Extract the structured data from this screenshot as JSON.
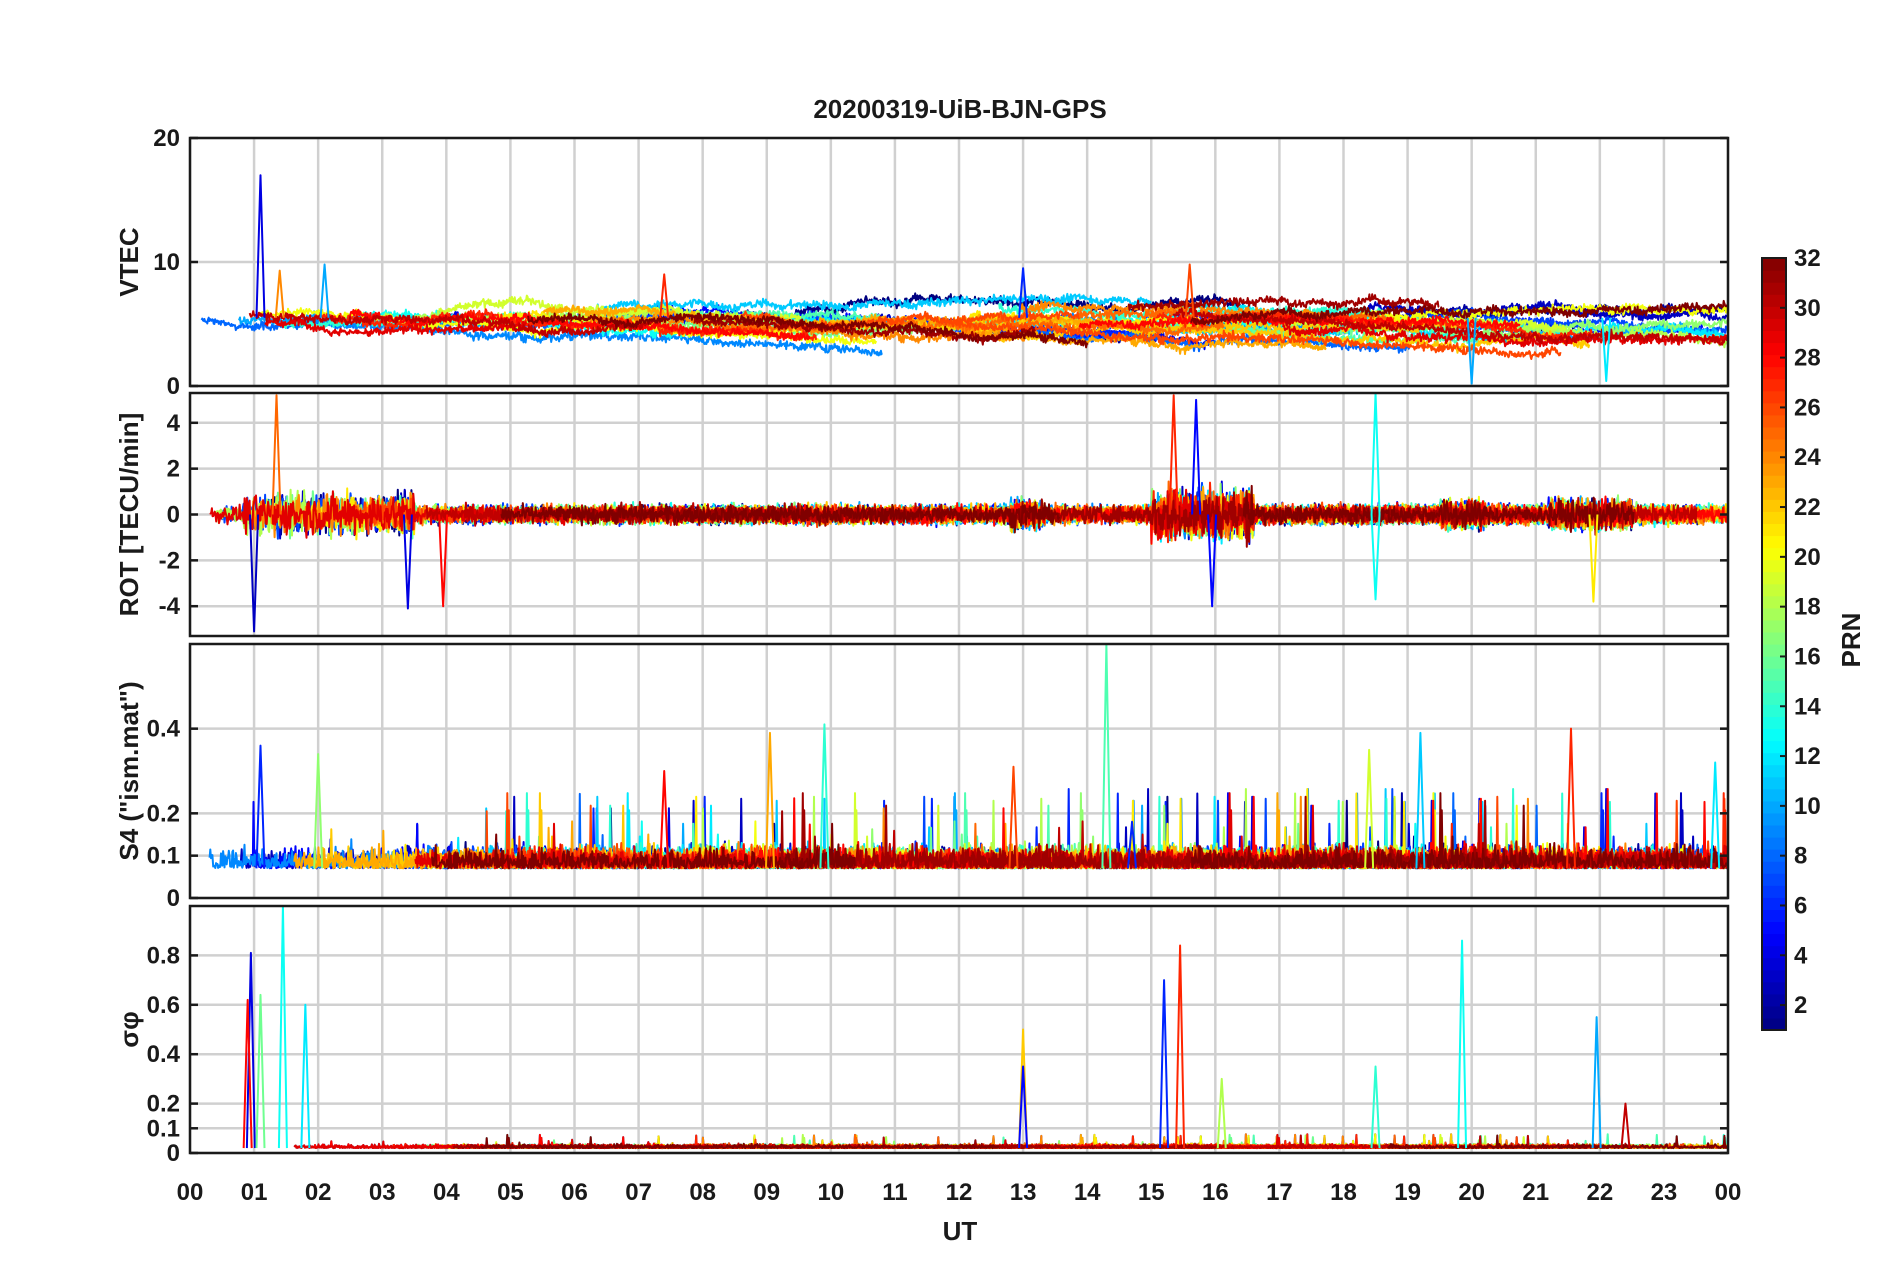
{
  "chart_data": {
    "type": "line",
    "title": "20200319-UiB-BJN-GPS",
    "xlabel": "UT",
    "x_tick_labels": [
      "00",
      "01",
      "02",
      "03",
      "04",
      "05",
      "06",
      "07",
      "08",
      "09",
      "10",
      "11",
      "12",
      "13",
      "14",
      "15",
      "16",
      "17",
      "18",
      "19",
      "20",
      "21",
      "22",
      "23",
      "00"
    ],
    "xlim": [
      0,
      24
    ],
    "colorbar": {
      "label": "PRN",
      "range": [
        1,
        32
      ],
      "tick_labels": [
        "2",
        "4",
        "6",
        "8",
        "10",
        "12",
        "14",
        "16",
        "18",
        "20",
        "22",
        "24",
        "26",
        "28",
        "30",
        "32"
      ],
      "colormap": "jet"
    },
    "panels": [
      {
        "id": "vtec",
        "ylabel": "VTEC",
        "ylim": [
          0,
          20
        ],
        "yticks": [
          0,
          10,
          20
        ],
        "ytick_labels": [
          "0",
          "10",
          "20"
        ],
        "baseline": 5.5,
        "noise": 1.2,
        "drift": 1.0,
        "clip_low": 0.3,
        "spikes": [
          {
            "prn": 4,
            "t": 1.1,
            "v": 17
          },
          {
            "prn": 10,
            "t": 2.1,
            "v": 9.8
          },
          {
            "prn": 24,
            "t": 1.4,
            "v": 9.3
          },
          {
            "prn": 6,
            "t": 13.0,
            "v": 9.5
          },
          {
            "prn": 26,
            "t": 15.6,
            "v": 9.8
          },
          {
            "prn": 27,
            "t": 7.4,
            "v": 9.0
          },
          {
            "prn": 10,
            "t": 20.0,
            "v": 0.2
          },
          {
            "prn": 12,
            "t": 22.1,
            "v": 0.4
          }
        ]
      },
      {
        "id": "rot",
        "ylabel": "ROT [TECU/min]",
        "ylim": [
          -5.3,
          5.3
        ],
        "yticks": [
          -4,
          -2,
          0,
          2,
          4
        ],
        "ytick_labels": [
          "-4",
          "-2",
          "0",
          "2",
          "4"
        ],
        "baseline": 0,
        "noise": 0.35,
        "active_windows": [
          [
            0.8,
            3.5,
            2.2
          ],
          [
            12.8,
            13.3,
            1.6
          ],
          [
            15.0,
            16.6,
            2.8
          ],
          [
            19.5,
            20.2,
            1.5
          ],
          [
            21.2,
            22.5,
            1.6
          ]
        ],
        "spikes": [
          {
            "prn": 3,
            "t": 1.0,
            "v": -5.1
          },
          {
            "prn": 25,
            "t": 1.35,
            "v": 5.2
          },
          {
            "prn": 4,
            "t": 3.4,
            "v": -4.1
          },
          {
            "prn": 28,
            "t": 3.95,
            "v": -4.0
          },
          {
            "prn": 27,
            "t": 15.35,
            "v": 5.2
          },
          {
            "prn": 5,
            "t": 15.7,
            "v": 5.0
          },
          {
            "prn": 5,
            "t": 15.95,
            "v": -4.0
          },
          {
            "prn": 13,
            "t": 18.5,
            "v": 5.3
          },
          {
            "prn": 13,
            "t": 18.5,
            "v": -3.7
          },
          {
            "prn": 21,
            "t": 21.9,
            "v": -3.8
          }
        ]
      },
      {
        "id": "s4",
        "ylabel": "S4 (\"ism.mat\")",
        "ylim": [
          0,
          0.6
        ],
        "yticks": [
          0,
          0.1,
          0.2,
          0.4
        ],
        "ytick_labels": [
          "0",
          "0.1",
          "0.2",
          "0.4"
        ],
        "baseline": 0.07,
        "noise": 0.04,
        "clip_low": 0.02,
        "spikes": [
          {
            "prn": 6,
            "t": 1.1,
            "v": 0.36
          },
          {
            "prn": 17,
            "t": 2.0,
            "v": 0.34
          },
          {
            "prn": 28,
            "t": 7.4,
            "v": 0.3
          },
          {
            "prn": 23,
            "t": 9.05,
            "v": 0.39
          },
          {
            "prn": 14,
            "t": 9.9,
            "v": 0.41
          },
          {
            "prn": 26,
            "t": 12.85,
            "v": 0.31
          },
          {
            "prn": 15,
            "t": 14.3,
            "v": 0.6
          },
          {
            "prn": 6,
            "t": 14.7,
            "v": 0.18
          },
          {
            "prn": 19,
            "t": 18.4,
            "v": 0.35
          },
          {
            "prn": 11,
            "t": 19.2,
            "v": 0.39
          },
          {
            "prn": 27,
            "t": 21.55,
            "v": 0.4
          },
          {
            "prn": 12,
            "t": 23.8,
            "v": 0.32
          }
        ]
      },
      {
        "id": "sigma_phi",
        "ylabel": "σφ",
        "ylim": [
          0,
          1.0
        ],
        "yticks": [
          0,
          0.1,
          0.2,
          0.4,
          0.6,
          0.8
        ],
        "ytick_labels": [
          "0",
          "0.1",
          "0.2",
          "0.4",
          "0.6",
          "0.8"
        ],
        "baseline": 0.02,
        "noise": 0.012,
        "clip_low": 0.0,
        "spikes": [
          {
            "prn": 4,
            "t": 0.95,
            "v": 0.81
          },
          {
            "prn": 28,
            "t": 0.9,
            "v": 0.62
          },
          {
            "prn": 16,
            "t": 1.1,
            "v": 0.64
          },
          {
            "prn": 13,
            "t": 1.45,
            "v": 1.0
          },
          {
            "prn": 12,
            "t": 1.8,
            "v": 0.6
          },
          {
            "prn": 22,
            "t": 13.0,
            "v": 0.5
          },
          {
            "prn": 5,
            "t": 13.0,
            "v": 0.35
          },
          {
            "prn": 6,
            "t": 15.2,
            "v": 0.7
          },
          {
            "prn": 27,
            "t": 15.45,
            "v": 0.84
          },
          {
            "prn": 18,
            "t": 16.1,
            "v": 0.3
          },
          {
            "prn": 14,
            "t": 18.5,
            "v": 0.35
          },
          {
            "prn": 13,
            "t": 19.85,
            "v": 0.86
          },
          {
            "prn": 10,
            "t": 21.95,
            "v": 0.55
          },
          {
            "prn": 30,
            "t": 22.4,
            "v": 0.2
          }
        ]
      }
    ]
  }
}
